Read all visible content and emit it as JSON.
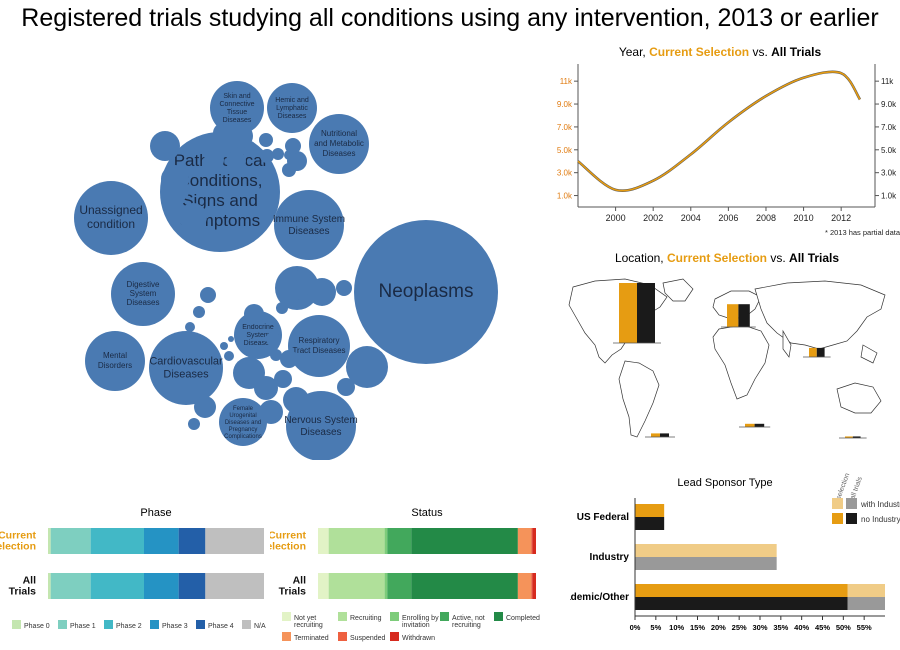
{
  "page_title": "Registered trials studying all conditions using any intervention, 2013 or earlier",
  "colors": {
    "selection": "#e69c12",
    "all": "#1a1a1a",
    "bubble": "#4a7ab2",
    "bubble_text": "#1a2a44",
    "tick_orange": "#e07b10"
  },
  "bubbles": {
    "labeled": [
      {
        "label": "Pathological\nConditions,\nSigns and\nSymptoms",
        "size": "xl"
      },
      {
        "label": "Neoplasms",
        "size": "xl"
      },
      {
        "label": "Unassigned\ncondition",
        "size": "l"
      },
      {
        "label": "Immune System\nDiseases",
        "size": "m"
      },
      {
        "label": "Cardiovascular\nDiseases",
        "size": "m"
      },
      {
        "label": "Nervous System\nDiseases",
        "size": "m"
      },
      {
        "label": "Nutritional\nand Metabolic\nDiseases",
        "size": "s"
      },
      {
        "label": "Skin and\nConnective\nTissue\nDiseases",
        "size": "xs"
      },
      {
        "label": "Hemic and\nLymphatic\nDiseases",
        "size": "xs"
      },
      {
        "label": "Digestive\nSystem\nDiseases",
        "size": "s"
      },
      {
        "label": "Mental\nDisorders",
        "size": "s"
      },
      {
        "label": "Endocrine\nSystem\nDiseases",
        "size": "xs"
      },
      {
        "label": "Respiratory\nTract Diseases",
        "size": "s"
      },
      {
        "label": "Female\nUrogenital\nDiseases and\nPregnancy\nComplications",
        "size": "xs"
      }
    ]
  },
  "chart_data": [
    {
      "type": "line",
      "title_parts": [
        "Year, ",
        "Current Selection",
        " vs. ",
        "All Trials"
      ],
      "x": [
        1998,
        2000,
        2002,
        2004,
        2006,
        2008,
        2010,
        2012,
        2013
      ],
      "series": [
        {
          "name": "Current Selection",
          "values": [
            4000,
            1500,
            2300,
            4600,
            7400,
            9700,
            11300,
            11700,
            9400
          ]
        },
        {
          "name": "All Trials",
          "values": [
            4000,
            1500,
            2300,
            4600,
            7400,
            9700,
            11300,
            11700,
            9400
          ]
        }
      ],
      "x_ticks": [
        "2000",
        "2002",
        "2004",
        "2006",
        "2008",
        "2010",
        "2012"
      ],
      "y_ticks": [
        "1.0k",
        "3.0k",
        "5.0k",
        "7.0k",
        "9.0k",
        "11k"
      ],
      "y_tick_values": [
        1000,
        3000,
        5000,
        7000,
        9000,
        11000
      ],
      "ylim": [
        0,
        12500
      ],
      "note": "* 2013 has partial data"
    },
    {
      "type": "bar",
      "title_parts": [
        "Location, ",
        "Current Selection",
        " vs. ",
        "All Trials"
      ],
      "regions": [
        {
          "name": "North America",
          "selection": 1,
          "all": 1
        },
        {
          "name": "Europe",
          "selection": 0.6,
          "all": 0.6
        },
        {
          "name": "Asia",
          "selection": 0.35,
          "all": 0.35
        },
        {
          "name": "Africa",
          "selection": 0.12,
          "all": 0.12
        },
        {
          "name": "South America",
          "selection": 0.1,
          "all": 0.1
        },
        {
          "name": "Oceania",
          "selection": 0.06,
          "all": 0.06
        }
      ]
    },
    {
      "type": "bar",
      "title": "Phase",
      "rows": [
        "Current\nSelection",
        "All\nTrials"
      ],
      "segments": [
        {
          "name": "Phase 0",
          "value": 1,
          "color": "#c4e6b0"
        },
        {
          "name": "Phase 1",
          "value": 15,
          "color": "#7ecfc0"
        },
        {
          "name": "Phase 2",
          "value": 20,
          "color": "#42b8c6"
        },
        {
          "name": "Phase 3",
          "value": 13,
          "color": "#2593c4"
        },
        {
          "name": "Phase 4",
          "value": 10,
          "color": "#235fa8"
        },
        {
          "name": "N/A",
          "value": 22,
          "color": "#bfbfbf"
        }
      ]
    },
    {
      "type": "bar",
      "title": "Status",
      "rows": [
        "Current\nSelection",
        "All\nTrials"
      ],
      "segments": [
        {
          "name": "Not yet recruiting",
          "value": 4,
          "color": "#e2f3c6"
        },
        {
          "name": "Recruiting",
          "value": 21,
          "color": "#b0e09a"
        },
        {
          "name": "Enrolling by invitation",
          "value": 1,
          "color": "#7dcc7a"
        },
        {
          "name": "Active, not recruiting",
          "value": 9,
          "color": "#42a85c"
        },
        {
          "name": "Completed",
          "value": 40,
          "color": "#238a47"
        },
        {
          "name": "Terminated",
          "value": 5,
          "color": "#f5935a"
        },
        {
          "name": "Suspended",
          "value": 0.4,
          "color": "#ee6040"
        },
        {
          "name": "Withdrawn",
          "value": 1.4,
          "color": "#d62a1e"
        }
      ],
      "legend_labels": [
        "Not yet\nrecruiting",
        "Recruiting",
        "Enrolling by\ninvitation",
        "Active, not\nrecruiting",
        "Completed",
        "Terminated",
        "Suspended",
        "Withdrawn"
      ]
    },
    {
      "type": "bar",
      "title": "Lead Sponsor Type",
      "categories": [
        "US Federal",
        "Industry",
        "Academic/Other"
      ],
      "series": [
        {
          "name": "with Industry",
          "selection": [
            0,
            34,
            9
          ],
          "all": [
            0,
            34,
            9
          ]
        },
        {
          "name": "no Industry",
          "selection": [
            7,
            0,
            51
          ],
          "all": [
            7,
            0,
            51
          ]
        }
      ],
      "legend_headers": [
        "selection",
        "all trials"
      ],
      "legend_labels": [
        "with Industry",
        "no Industry"
      ],
      "x_ticks": [
        "0%",
        "5%",
        "10%",
        "15%",
        "20%",
        "25%",
        "30%",
        "35%",
        "40%",
        "45%",
        "50%",
        "55%"
      ],
      "xlim": [
        0,
        60
      ]
    }
  ]
}
